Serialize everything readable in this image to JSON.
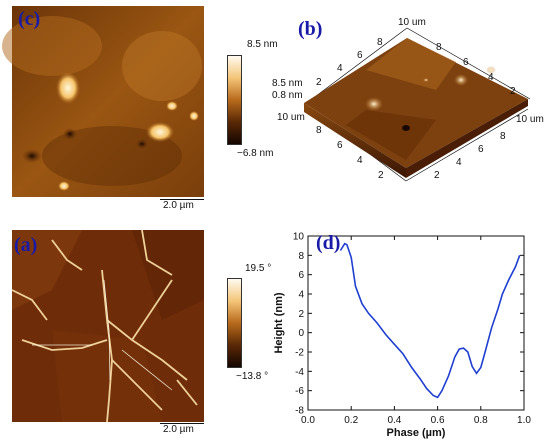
{
  "panels": {
    "c": {
      "label": "(c)",
      "colorbar_max": "8.5 nm",
      "colorbar_min": "−6.8 nm",
      "scale_bar": "2.0 µm"
    },
    "b": {
      "label": "(b)",
      "top_axis_label": "10 um",
      "left_axis_label": "10 um",
      "right_axis_label": "10 um",
      "z_labels": [
        "8.5 nm",
        "0.8 nm"
      ],
      "axis_ticks": [
        "2",
        "4",
        "6",
        "8"
      ]
    },
    "a": {
      "label": "(a)",
      "colorbar_max": "19.5 °",
      "colorbar_min": "−13.8 °",
      "scale_bar": "2.0 µm"
    },
    "d": {
      "label": "(d)"
    }
  },
  "colors": {
    "afm_dark": "#2b0f00",
    "afm_mid": "#a45a12",
    "afm_light": "#f0b056",
    "line": "#1f3fd0",
    "label": "#1a1aa8"
  },
  "chart_data": {
    "type": "line",
    "title": "",
    "xlabel": "Phase (µm)",
    "ylabel": "Height (nm)",
    "xlim": [
      0.0,
      1.0
    ],
    "ylim": [
      -8,
      10
    ],
    "xticks": [
      "0.0",
      "0.2",
      "0.4",
      "0.6",
      "0.8",
      "1.0"
    ],
    "yticks": [
      "-8",
      "-6",
      "-4",
      "-2",
      "0",
      "2",
      "4",
      "6",
      "8",
      "10"
    ],
    "series": [
      {
        "x": [
          0.15,
          0.17,
          0.18,
          0.2,
          0.22,
          0.25,
          0.28,
          0.32,
          0.36,
          0.4,
          0.44,
          0.48,
          0.52,
          0.55,
          0.58,
          0.6,
          0.62,
          0.65,
          0.68,
          0.7,
          0.72,
          0.74,
          0.76,
          0.78,
          0.8,
          0.82,
          0.85,
          0.88,
          0.9,
          0.93,
          0.96,
          0.98
        ],
        "y": [
          8.5,
          9.2,
          9.1,
          7.8,
          4.8,
          3.0,
          2.0,
          1.0,
          -0.2,
          -1.2,
          -2.2,
          -3.6,
          -4.8,
          -5.8,
          -6.5,
          -6.7,
          -6.0,
          -4.5,
          -2.5,
          -1.7,
          -1.6,
          -2.0,
          -3.5,
          -4.2,
          -3.6,
          -2.0,
          0.5,
          2.5,
          4.0,
          5.5,
          6.8,
          8.0
        ]
      }
    ]
  }
}
